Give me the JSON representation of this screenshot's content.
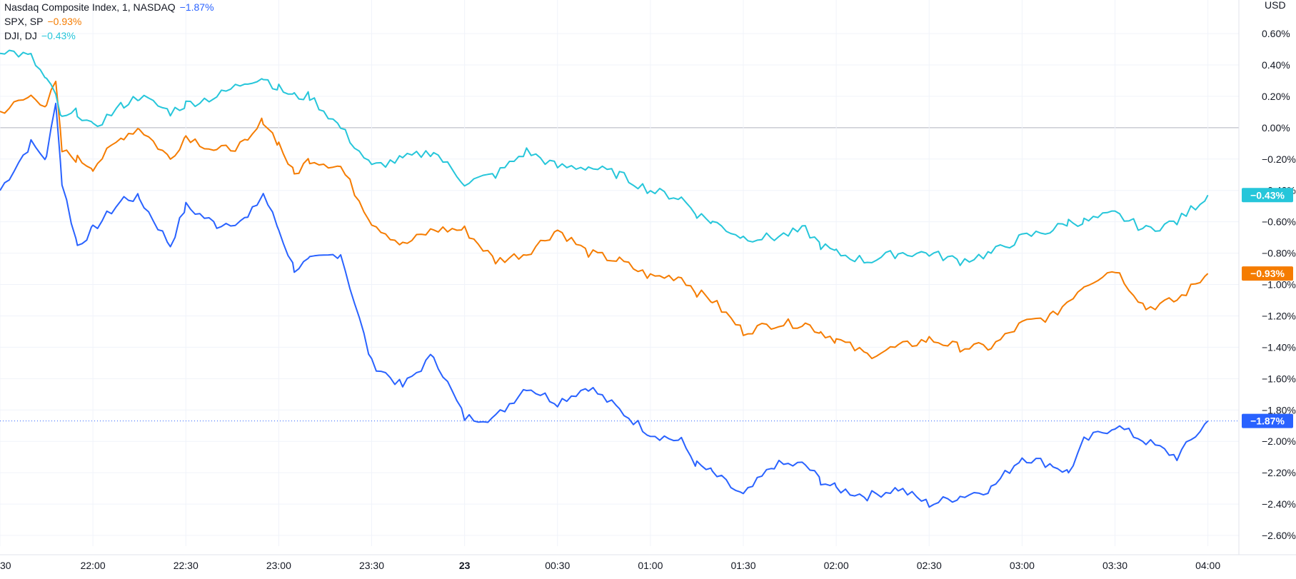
{
  "legend": [
    {
      "name": "Nasdaq Composite Index, 1, NASDAQ",
      "change": "−1.87%",
      "color": "#2962ff"
    },
    {
      "name": "SPX, SP",
      "change": "−0.93%",
      "color": "#f57c00"
    },
    {
      "name": "DJI, DJ",
      "change": "−0.43%",
      "color": "#26c6da"
    }
  ],
  "axis": {
    "currency": "USD",
    "y_ticks": [
      "0.60%",
      "0.40%",
      "0.20%",
      "0.00%",
      "−0.20%",
      "−0.40%",
      "−0.60%",
      "−0.80%",
      "−1.00%",
      "−1.20%",
      "−1.40%",
      "−1.60%",
      "−1.80%",
      "−2.00%",
      "−2.20%",
      "−2.40%",
      "−2.60%"
    ],
    "x_ticks": [
      "30",
      "22:00",
      "22:30",
      "23:00",
      "23:30",
      "23",
      "00:30",
      "01:00",
      "01:30",
      "02:00",
      "02:30",
      "03:00",
      "03:30",
      "04:00"
    ],
    "x_ticks_bold": [
      "23"
    ]
  },
  "price_tags": [
    {
      "text": "−0.43%",
      "series": "DJI, DJ",
      "color": "#26c6da"
    },
    {
      "text": "−0.93%",
      "series": "SPX, SP",
      "color": "#f57c00"
    },
    {
      "text": "−1.87%",
      "series": "Nasdaq Composite Index, 1, NASDAQ",
      "color": "#2962ff"
    }
  ],
  "chart_data": {
    "type": "line",
    "ylabel": "USD",
    "ylim": [
      -2.7,
      0.75
    ],
    "xlim": [
      "21:30",
      "04:10"
    ],
    "grid": true,
    "legend_position": "top-left",
    "x": [
      "21:30",
      "21:40",
      "21:45",
      "21:48",
      "21:50",
      "21:55",
      "22:00",
      "22:10",
      "22:15",
      "22:25",
      "22:30",
      "22:40",
      "22:50",
      "22:55",
      "23:00",
      "23:05",
      "23:10",
      "23:20",
      "23:30",
      "23:40",
      "23:50",
      "00:00",
      "00:10",
      "00:20",
      "00:30",
      "00:40",
      "00:50",
      "01:00",
      "01:10",
      "01:15",
      "01:20",
      "01:30",
      "01:40",
      "01:50",
      "01:55",
      "02:00",
      "02:10",
      "02:20",
      "02:30",
      "02:40",
      "02:50",
      "03:00",
      "03:10",
      "03:15",
      "03:20",
      "03:30",
      "03:40",
      "03:50",
      "04:00"
    ],
    "series": [
      {
        "name": "Nasdaq Composite Index, 1, NASDAQ",
        "color": "#2962ff",
        "values": [
          -0.4,
          -0.1,
          -0.2,
          0.18,
          -0.35,
          -0.75,
          -0.65,
          -0.45,
          -0.45,
          -0.75,
          -0.5,
          -0.62,
          -0.58,
          -0.42,
          -0.65,
          -0.9,
          -0.85,
          -0.8,
          -1.5,
          -1.65,
          -1.45,
          -1.85,
          -1.85,
          -1.65,
          -1.75,
          -1.65,
          -1.8,
          -1.95,
          -2.0,
          -2.15,
          -2.2,
          -2.35,
          -2.15,
          -2.15,
          -2.25,
          -2.3,
          -2.35,
          -2.3,
          -2.4,
          -2.35,
          -2.3,
          -2.1,
          -2.15,
          -2.2,
          -2.0,
          -1.9,
          -2.0,
          -2.1,
          -1.87
        ]
      },
      {
        "name": "SPX, SP",
        "color": "#f57c00",
        "values": [
          0.1,
          0.2,
          0.15,
          0.28,
          -0.15,
          -0.2,
          -0.25,
          -0.05,
          0.0,
          -0.2,
          -0.05,
          -0.15,
          -0.1,
          0.05,
          -0.1,
          -0.3,
          -0.2,
          -0.25,
          -0.6,
          -0.75,
          -0.65,
          -0.65,
          -0.85,
          -0.8,
          -0.65,
          -0.8,
          -0.85,
          -0.95,
          -0.95,
          -1.05,
          -1.1,
          -1.3,
          -1.25,
          -1.25,
          -1.3,
          -1.35,
          -1.45,
          -1.4,
          -1.35,
          -1.4,
          -1.4,
          -1.25,
          -1.2,
          -1.1,
          -1.0,
          -0.9,
          -1.15,
          -1.1,
          -0.93
        ]
      },
      {
        "name": "DJI, DJ",
        "color": "#26c6da",
        "values": [
          0.5,
          0.45,
          0.3,
          0.2,
          0.05,
          0.1,
          0.0,
          0.15,
          0.2,
          0.1,
          0.15,
          0.2,
          0.3,
          0.32,
          0.25,
          0.2,
          0.2,
          0.0,
          -0.25,
          -0.2,
          -0.15,
          -0.35,
          -0.3,
          -0.15,
          -0.25,
          -0.25,
          -0.3,
          -0.4,
          -0.45,
          -0.55,
          -0.6,
          -0.7,
          -0.7,
          -0.65,
          -0.75,
          -0.8,
          -0.85,
          -0.8,
          -0.8,
          -0.85,
          -0.8,
          -0.7,
          -0.65,
          -0.6,
          -0.6,
          -0.55,
          -0.65,
          -0.6,
          -0.43
        ]
      }
    ]
  }
}
